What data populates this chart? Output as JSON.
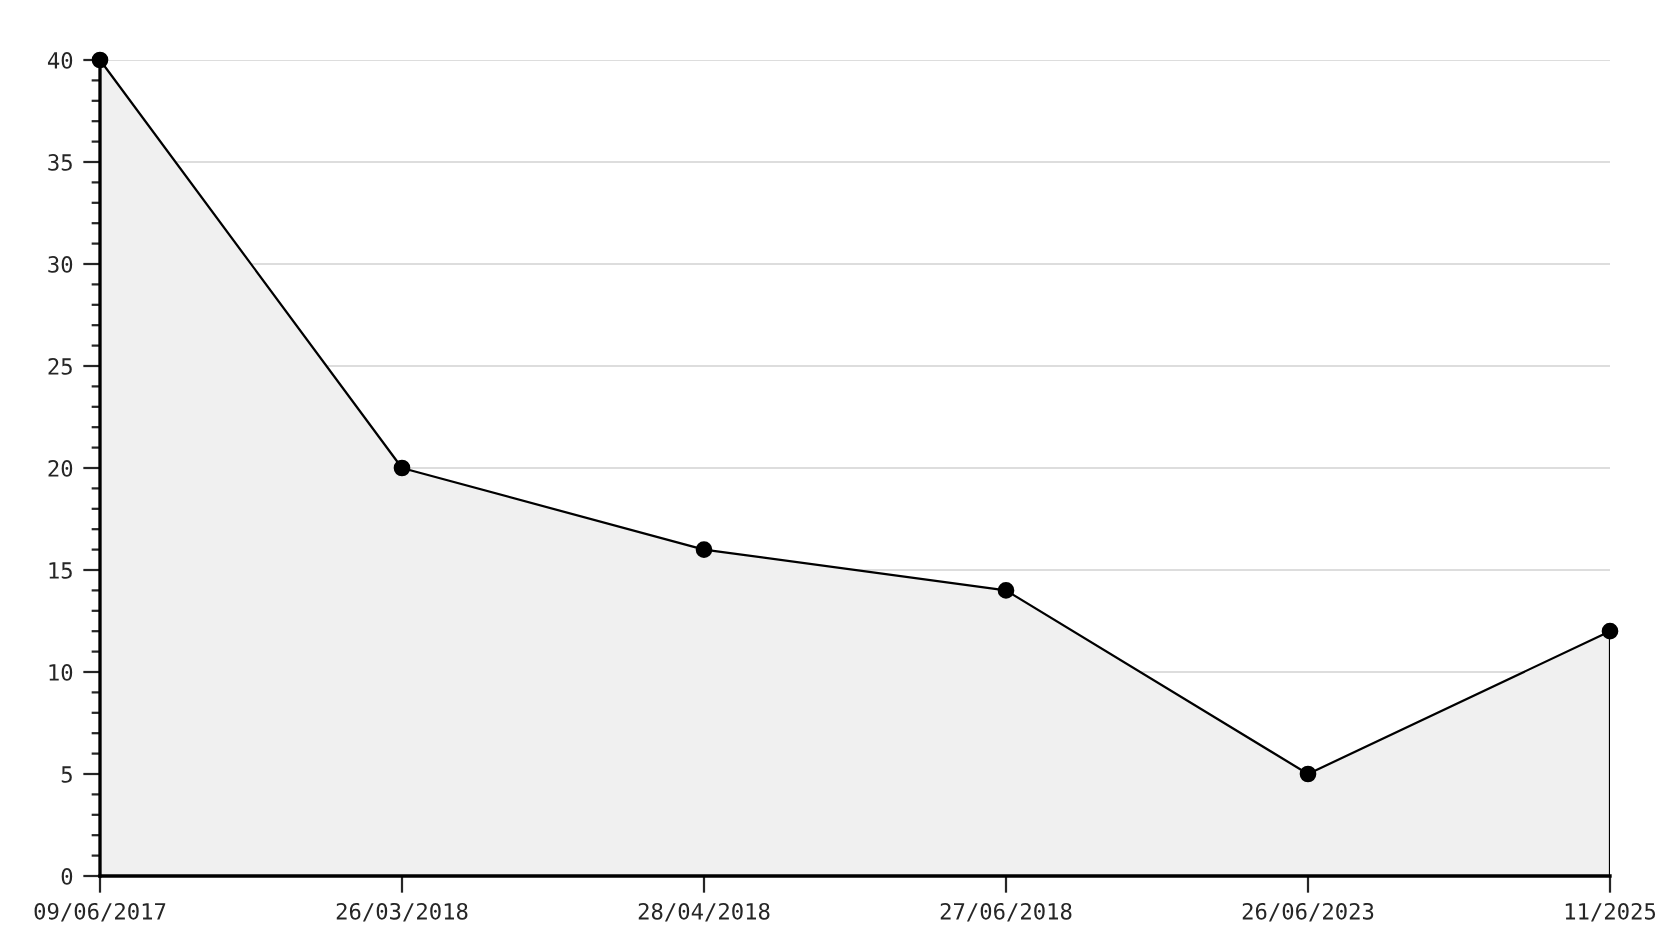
{
  "chart_data": {
    "type": "area",
    "categories": [
      "09/06/2017",
      "26/03/2018",
      "28/04/2018",
      "27/06/2018",
      "26/06/2023",
      "11/2025"
    ],
    "series": [
      {
        "color": "#000000",
        "values": [
          40,
          20,
          16,
          14,
          5,
          12
        ]
      }
    ],
    "ylim": [
      0,
      40
    ],
    "yticks": [
      0,
      5,
      10,
      15,
      20,
      25,
      30,
      35,
      40
    ],
    "grid": "y",
    "marker": "circle",
    "line_style": "solid",
    "legend": false
  }
}
